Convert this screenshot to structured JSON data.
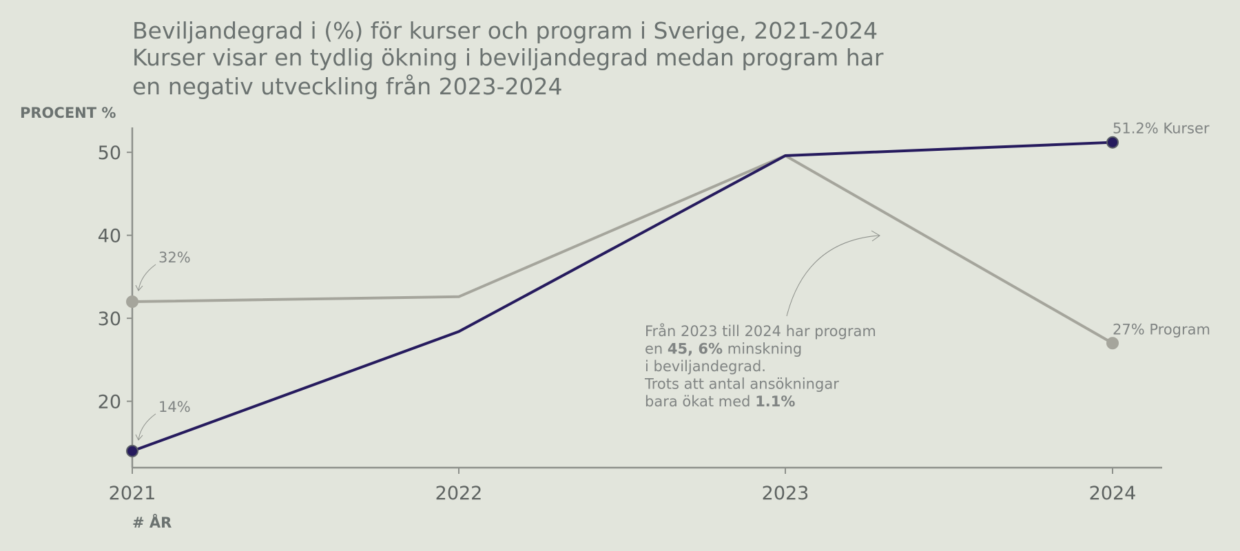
{
  "colors": {
    "background": "#e2e5dc",
    "kurser": "#261b5e",
    "program": "#a5a59c",
    "axis": "#8d908b",
    "text": "#6b7270"
  },
  "chart_data": {
    "type": "line",
    "title_lines": [
      "Beviljandegrad i (%) för kurser och program i Sverige, 2021-2024",
      "Kurser visar en tydlig ökning i beviljandegrad medan program har",
      "en negativ utveckling från 2023-2024"
    ],
    "ylabel": "PROCENT %",
    "xlabel": "# ÅR",
    "x": [
      "2021",
      "2022",
      "2023",
      "2024"
    ],
    "ylim": [
      12,
      53
    ],
    "yticks": [
      20,
      30,
      40,
      50
    ],
    "grid": false,
    "series": [
      {
        "name": "Kurser",
        "values": [
          14.0,
          28.4,
          49.6,
          51.2
        ],
        "end_label": "51.2% Kurser",
        "start_label": "14%"
      },
      {
        "name": "Program",
        "values": [
          32.0,
          32.6,
          49.6,
          27.0
        ],
        "end_label": "27% Program",
        "start_label": "32%"
      }
    ],
    "annotation": {
      "lines": [
        [
          {
            "t": "Från 2023 till 2024 har program",
            "b": false
          }
        ],
        [
          {
            "t": "en ",
            "b": false
          },
          {
            "t": "45, 6%",
            "b": true
          },
          {
            "t": " minskning",
            "b": false
          }
        ],
        [
          {
            "t": "i beviljandegrad.",
            "b": false
          }
        ],
        [
          {
            "t": "Trots att antal ansökningar",
            "b": false
          }
        ],
        [
          {
            "t": "bara ökat med ",
            "b": false
          },
          {
            "t": "1.1%",
            "b": true
          }
        ]
      ]
    }
  }
}
